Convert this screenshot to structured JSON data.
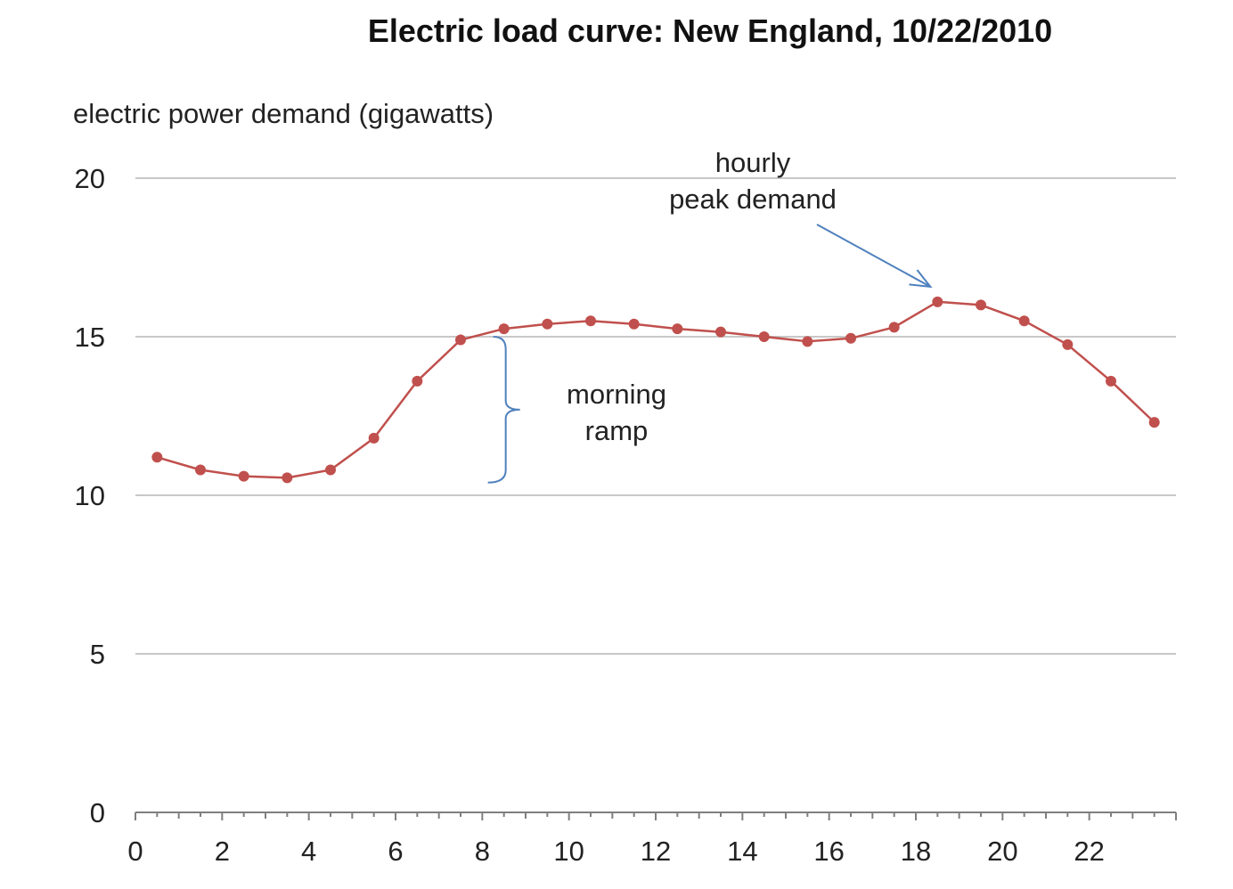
{
  "chart_data": {
    "type": "line",
    "title": "Electric load curve:  New England, 10/22/2010",
    "ylabel": "electric power demand (gigawatts)",
    "xlabel": "",
    "xlim": [
      0,
      24
    ],
    "ylim": [
      0,
      20
    ],
    "x_ticks": [
      0,
      2,
      4,
      6,
      8,
      10,
      12,
      14,
      16,
      18,
      20,
      22
    ],
    "y_ticks": [
      0,
      5,
      10,
      15,
      20
    ],
    "grid": "horizontal",
    "series": [
      {
        "color": "#c0504d",
        "x": [
          0.5,
          1.5,
          2.5,
          3.5,
          4.5,
          5.5,
          6.5,
          7.5,
          8.5,
          9.5,
          10.5,
          11.5,
          12.5,
          13.5,
          14.5,
          15.5,
          16.5,
          17.5,
          18.5,
          19.5,
          20.5,
          21.5,
          22.5,
          23.5
        ],
        "values": [
          11.2,
          10.8,
          10.6,
          10.55,
          10.8,
          11.8,
          13.6,
          14.9,
          15.25,
          15.4,
          15.5,
          15.4,
          15.25,
          15.15,
          15.0,
          14.85,
          14.95,
          15.3,
          16.1,
          16.0,
          15.5,
          14.75,
          13.6,
          12.3
        ]
      }
    ],
    "annotations": {
      "peak": {
        "lines": [
          "hourly",
          "peak demand"
        ],
        "x": 18.5,
        "y": 16.1
      },
      "ramp": {
        "lines": [
          "morning",
          "ramp"
        ],
        "x": 8.5,
        "y_from": 10.4,
        "y_to": 15.0
      }
    },
    "colors": {
      "line": "#c0504d",
      "annotation": "#4f81bd",
      "grid": "#c8c8c8"
    }
  }
}
